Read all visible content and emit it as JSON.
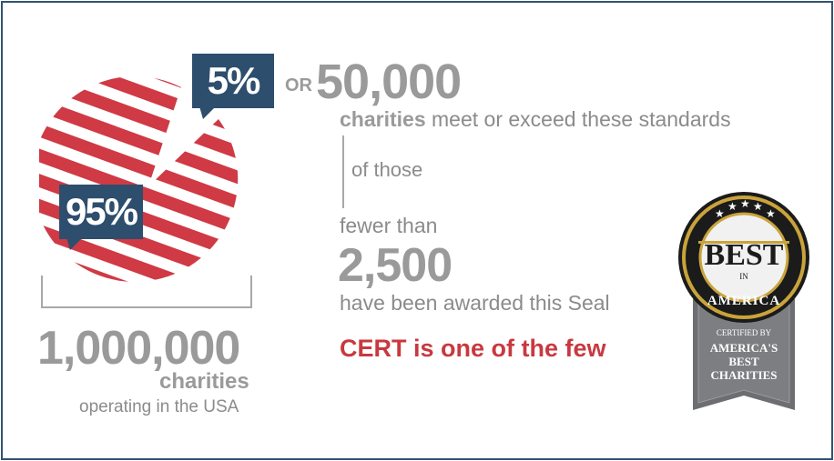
{
  "pie": {
    "large_share_label": "95%",
    "small_share_label": "5%",
    "colors": {
      "stripe": "#cf3a45",
      "badge": "#2d4e6d",
      "frame": "#34526f"
    }
  },
  "stats": {
    "or_label": "OR",
    "qualifying_count": "50,000",
    "qualifying_subject": "charities",
    "qualifying_text": "meet or exceed these standards",
    "of_those": "of those",
    "fewer_than": "fewer than",
    "awarded_count": "2,500",
    "awarded_text": "have been awarded this Seal",
    "total_count": "1,000,000",
    "total_subject": "charities",
    "total_text": "operating in the USA"
  },
  "callout": {
    "text": "CERT is one of the few",
    "color": "#c8393f"
  },
  "seal": {
    "best": "BEST",
    "in": "IN",
    "america": "AMERICA",
    "certified_by": "CERTIFIED BY",
    "org_line1": "AMERICA'S",
    "org_line2": "BEST",
    "org_line3": "CHARITIES"
  }
}
